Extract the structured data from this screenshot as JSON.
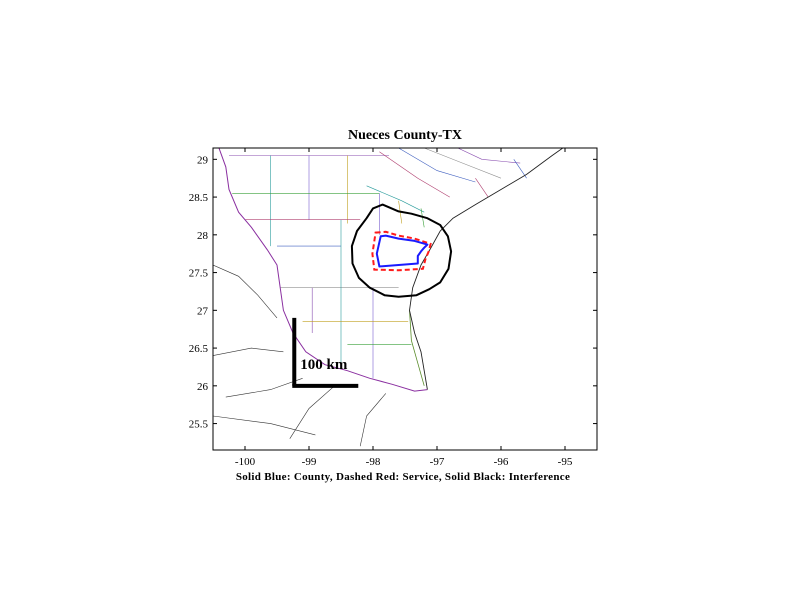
{
  "chart_data": {
    "type": "map",
    "title": "Nueces County-TX",
    "caption": "Solid Blue: County, Dashed Red: Service, Solid Black: Interference",
    "xlim": [
      -100.5,
      -94.5
    ],
    "ylim": [
      25.15,
      29.15
    ],
    "x_ticks": [
      -100,
      -99,
      -98,
      -97,
      -96,
      -95
    ],
    "y_ticks": [
      25.5,
      26,
      26.5,
      27,
      27.5,
      28,
      28.5,
      29
    ],
    "x_tick_labels": [
      "-100",
      "-99",
      "-98",
      "-97",
      "-96",
      "-95"
    ],
    "y_tick_labels": [
      "25.5",
      "26",
      "26.5",
      "27",
      "27.5",
      "28",
      "28.5",
      "29"
    ],
    "scale_bar": {
      "label": "100 km",
      "corner": [
        -99.23,
        26.0
      ],
      "top_lat": 26.9,
      "right_lon": -98.23
    },
    "legend": [
      {
        "name": "County",
        "style": "solid",
        "color": "#1a1aff"
      },
      {
        "name": "Service",
        "style": "dashed",
        "color": "#ff1a1a"
      },
      {
        "name": "Interference",
        "style": "solid",
        "color": "#000000"
      }
    ],
    "county_polygon": [
      [
        -97.88,
        27.98
      ],
      [
        -97.8,
        27.99
      ],
      [
        -97.6,
        27.95
      ],
      [
        -97.35,
        27.92
      ],
      [
        -97.15,
        27.87
      ],
      [
        -97.2,
        27.83
      ],
      [
        -97.25,
        27.78
      ],
      [
        -97.3,
        27.72
      ],
      [
        -97.3,
        27.62
      ],
      [
        -97.6,
        27.6
      ],
      [
        -97.9,
        27.58
      ],
      [
        -97.94,
        27.75
      ]
    ],
    "service_polygon": [
      [
        -97.96,
        28.03
      ],
      [
        -97.8,
        28.04
      ],
      [
        -97.6,
        27.99
      ],
      [
        -97.35,
        27.95
      ],
      [
        -97.1,
        27.88
      ],
      [
        -97.13,
        27.78
      ],
      [
        -97.18,
        27.68
      ],
      [
        -97.22,
        27.55
      ],
      [
        -97.6,
        27.53
      ],
      [
        -97.98,
        27.54
      ],
      [
        -98.01,
        27.75
      ]
    ],
    "interference_contour": [
      [
        -98.0,
        28.35
      ],
      [
        -97.85,
        28.4
      ],
      [
        -97.6,
        28.31
      ],
      [
        -97.4,
        28.28
      ],
      [
        -97.15,
        28.22
      ],
      [
        -96.95,
        28.13
      ],
      [
        -96.83,
        27.98
      ],
      [
        -96.78,
        27.78
      ],
      [
        -96.82,
        27.55
      ],
      [
        -96.95,
        27.37
      ],
      [
        -97.12,
        27.28
      ],
      [
        -97.32,
        27.2
      ],
      [
        -97.6,
        27.18
      ],
      [
        -97.82,
        27.2
      ],
      [
        -98.05,
        27.3
      ],
      [
        -98.22,
        27.43
      ],
      [
        -98.32,
        27.62
      ],
      [
        -98.33,
        27.85
      ],
      [
        -98.25,
        28.05
      ],
      [
        -98.1,
        28.22
      ]
    ],
    "coastline": [
      [
        -97.15,
        25.95
      ],
      [
        -97.2,
        26.2
      ],
      [
        -97.25,
        26.45
      ],
      [
        -97.35,
        26.7
      ],
      [
        -97.43,
        27.0
      ],
      [
        -97.38,
        27.3
      ],
      [
        -97.25,
        27.6
      ],
      [
        -97.1,
        27.82
      ],
      [
        -96.95,
        28.05
      ],
      [
        -96.75,
        28.22
      ],
      [
        -96.4,
        28.4
      ],
      [
        -96.0,
        28.6
      ],
      [
        -95.6,
        28.8
      ],
      [
        -95.2,
        29.05
      ],
      [
        -94.95,
        29.2
      ]
    ],
    "rio_grande": [
      [
        -100.45,
        29.25
      ],
      [
        -100.3,
        28.9
      ],
      [
        -100.25,
        28.6
      ],
      [
        -100.1,
        28.3
      ],
      [
        -99.9,
        28.1
      ],
      [
        -99.65,
        27.8
      ],
      [
        -99.5,
        27.6
      ],
      [
        -99.45,
        27.3
      ],
      [
        -99.4,
        27.0
      ],
      [
        -99.25,
        26.7
      ],
      [
        -99.05,
        26.45
      ],
      [
        -98.75,
        26.28
      ],
      [
        -98.4,
        26.2
      ],
      [
        -98.05,
        26.1
      ],
      [
        -97.7,
        26.02
      ],
      [
        -97.35,
        25.93
      ],
      [
        -97.15,
        25.95
      ]
    ],
    "state_boundary": [
      [
        -97.43,
        27.0
      ],
      [
        -97.4,
        26.6
      ],
      [
        -97.3,
        26.3
      ],
      [
        -97.2,
        26.0
      ]
    ],
    "county_lines": [
      [
        [
          -100.25,
          29.05
        ],
        [
          -97.75,
          29.05
        ]
      ],
      [
        [
          -99.6,
          29.05
        ],
        [
          -99.6,
          27.85
        ]
      ],
      [
        [
          -99.0,
          29.05
        ],
        [
          -99.0,
          28.2
        ]
      ],
      [
        [
          -98.4,
          29.05
        ],
        [
          -98.4,
          28.15
        ]
      ],
      [
        [
          -100.2,
          28.55
        ],
        [
          -97.9,
          28.55
        ]
      ],
      [
        [
          -100.0,
          28.2
        ],
        [
          -98.2,
          28.2
        ]
      ],
      [
        [
          -99.5,
          27.85
        ],
        [
          -98.5,
          27.85
        ]
      ],
      [
        [
          -99.45,
          27.3
        ],
        [
          -97.6,
          27.3
        ]
      ],
      [
        [
          -98.95,
          27.3
        ],
        [
          -98.95,
          26.7
        ]
      ],
      [
        [
          -98.5,
          28.2
        ],
        [
          -98.5,
          26.3
        ]
      ],
      [
        [
          -98.0,
          27.3
        ],
        [
          -98.0,
          26.1
        ]
      ],
      [
        [
          -99.1,
          26.85
        ],
        [
          -97.45,
          26.85
        ]
      ],
      [
        [
          -98.4,
          26.55
        ],
        [
          -97.4,
          26.55
        ]
      ],
      [
        [
          -97.9,
          29.1
        ],
        [
          -97.3,
          28.75
        ],
        [
          -96.8,
          28.5
        ]
      ],
      [
        [
          -97.6,
          29.15
        ],
        [
          -97.0,
          28.85
        ],
        [
          -96.4,
          28.7
        ]
      ],
      [
        [
          -97.2,
          29.15
        ],
        [
          -96.6,
          28.95
        ],
        [
          -96.0,
          28.75
        ]
      ],
      [
        [
          -96.8,
          29.2
        ],
        [
          -96.3,
          29.0
        ],
        [
          -95.7,
          28.95
        ]
      ],
      [
        [
          -98.1,
          28.65
        ],
        [
          -97.55,
          28.45
        ],
        [
          -97.2,
          28.3
        ]
      ],
      [
        [
          -97.9,
          28.55
        ],
        [
          -97.9,
          28.0
        ]
      ],
      [
        [
          -97.6,
          28.45
        ],
        [
          -97.55,
          28.15
        ]
      ],
      [
        [
          -97.25,
          28.35
        ],
        [
          -97.2,
          28.1
        ]
      ],
      [
        [
          -96.4,
          28.75
        ],
        [
          -96.2,
          28.5
        ]
      ],
      [
        [
          -95.8,
          29.0
        ],
        [
          -95.6,
          28.75
        ]
      ]
    ],
    "mexico_lines": [
      [
        [
          -100.5,
          27.6
        ],
        [
          -100.1,
          27.45
        ],
        [
          -99.8,
          27.2
        ],
        [
          -99.5,
          26.9
        ]
      ],
      [
        [
          -100.5,
          26.4
        ],
        [
          -99.9,
          26.5
        ],
        [
          -99.4,
          26.45
        ]
      ],
      [
        [
          -100.3,
          25.85
        ],
        [
          -99.6,
          25.95
        ],
        [
          -99.1,
          26.1
        ]
      ],
      [
        [
          -99.3,
          25.3
        ],
        [
          -99.0,
          25.7
        ],
        [
          -98.6,
          26.0
        ]
      ],
      [
        [
          -100.5,
          25.6
        ],
        [
          -99.6,
          25.5
        ],
        [
          -98.9,
          25.35
        ]
      ],
      [
        [
          -98.2,
          25.2
        ],
        [
          -98.1,
          25.6
        ],
        [
          -97.8,
          25.9
        ]
      ]
    ]
  }
}
